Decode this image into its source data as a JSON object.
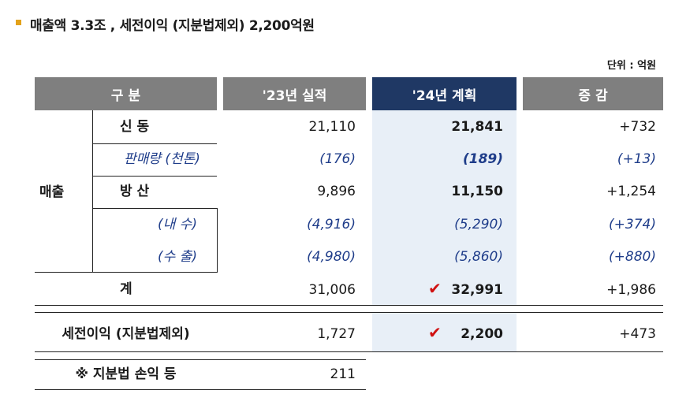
{
  "title": "매출액 3.3조 , 세전이익 (지분법제외)  2,200억원",
  "unit": "단위 : 억원",
  "headers": {
    "category": "구   분",
    "actual23": "'23년 실적",
    "plan24": "'24년 계획",
    "change": "증   감"
  },
  "group_label": "매출",
  "rows": [
    {
      "label": "신 동",
      "a23": "21,110",
      "p24": "21,841",
      "chg": "+732"
    },
    {
      "label": "판매량 (천톤)",
      "a23": "(176)",
      "p24": "(189)",
      "chg": "(+13)"
    },
    {
      "label": "방 산",
      "a23": "9,896",
      "p24": "11,150",
      "chg": "+1,254"
    },
    {
      "label": "(내  수)",
      "a23": "(4,916)",
      "p24": "(5,290)",
      "chg": "(+374)"
    },
    {
      "label": "(수  출)",
      "a23": "(4,980)",
      "p24": "(5,860)",
      "chg": "(+880)"
    },
    {
      "label": "계",
      "a23": "31,006",
      "p24": "32,991",
      "chg": "+1,986"
    },
    {
      "label": "세전이익 (지분법제외)",
      "a23": "1,727",
      "p24": "2,200",
      "chg": "+473"
    },
    {
      "label": "※ 지분법 손익 등",
      "a23": "211",
      "p24": "",
      "chg": ""
    }
  ],
  "check_mark": "✔",
  "colors": {
    "header_gray": "#7f7f7f",
    "header_navy": "#1f3864",
    "highlight": "#e8eff7",
    "accent": "#e3a21a",
    "check": "#d01010",
    "italic_blue": "#1f3d8a"
  }
}
